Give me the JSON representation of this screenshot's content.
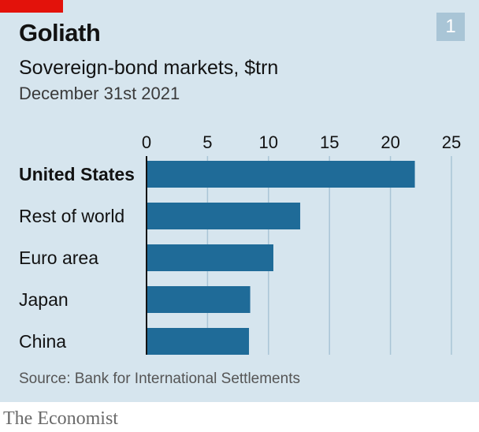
{
  "header": {
    "number": "1",
    "title": "Goliath",
    "subtitle": "Sovereign-bond markets, $trn",
    "date": "December 31st 2021"
  },
  "source": "Source: Bank for International Settlements",
  "publisher": "The Economist",
  "colors": {
    "bar": "#1f6b98",
    "background": "#d6e5ee",
    "accent": "#e3120b",
    "grid": "#a9c5d6"
  },
  "chart_data": {
    "type": "bar",
    "orientation": "horizontal",
    "categories": [
      "United States",
      "Rest of world",
      "Euro area",
      "Japan",
      "China"
    ],
    "values": [
      22.0,
      12.6,
      10.4,
      8.5,
      8.4
    ],
    "xlim": [
      0,
      25
    ],
    "xticks": [
      "0",
      "5",
      "10",
      "15",
      "20",
      "25"
    ],
    "tick_values": [
      0,
      5,
      10,
      15,
      20,
      25
    ],
    "grid": true,
    "bold_category": "United States"
  }
}
